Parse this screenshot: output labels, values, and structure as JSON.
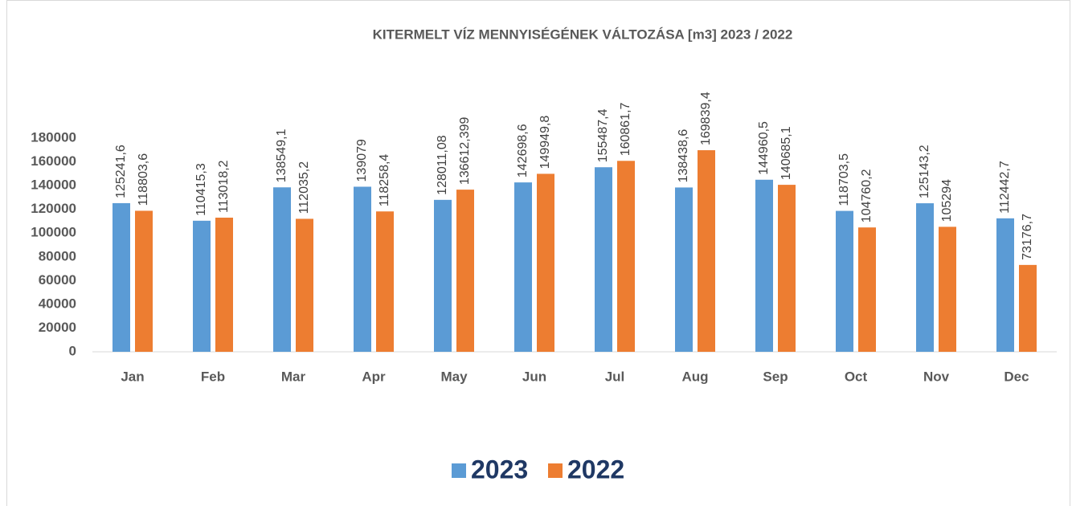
{
  "chart_data": {
    "type": "bar",
    "title": "KITERMELT VÍZ MENNYISÉGÉNEK VÁLTOZÁSA [m3] 2023  / 2022",
    "categories": [
      "Jan",
      "Feb",
      "Mar",
      "Apr",
      "May",
      "Jun",
      "Jul",
      "Aug",
      "Sep",
      "Oct",
      "Nov",
      "Dec"
    ],
    "series": [
      {
        "name": "2023",
        "color": "#5b9bd5",
        "values": [
          125241.6,
          110415.3,
          138549.1,
          139079,
          128011.08,
          142698.6,
          155487.4,
          138438.6,
          144960.5,
          118703.5,
          125143.2,
          112442.7
        ],
        "value_labels": [
          "125241,6",
          "110415,3",
          "138549,1",
          "139079",
          "128011,08",
          "142698,6",
          "155487,4",
          "138438,6",
          "144960,5",
          "118703,5",
          "125143,2",
          "112442,7"
        ]
      },
      {
        "name": "2022",
        "color": "#ed7d31",
        "values": [
          118803.6,
          113018.2,
          112035.2,
          118258.4,
          136612.399,
          149949.8,
          160861.7,
          169839.4,
          140685.1,
          104760.2,
          105294,
          73176.7
        ],
        "value_labels": [
          "118803,6",
          "113018,2",
          "112035,2",
          "118258,4",
          "136612,399",
          "149949,8",
          "160861,7",
          "169839,4",
          "140685,1",
          "104760,2",
          "105294",
          "73176,7"
        ]
      }
    ],
    "ylim": [
      0,
      180000
    ],
    "yticks": [
      0,
      20000,
      40000,
      60000,
      80000,
      100000,
      120000,
      140000,
      160000,
      180000
    ],
    "grid": false,
    "legend": "bottom"
  }
}
